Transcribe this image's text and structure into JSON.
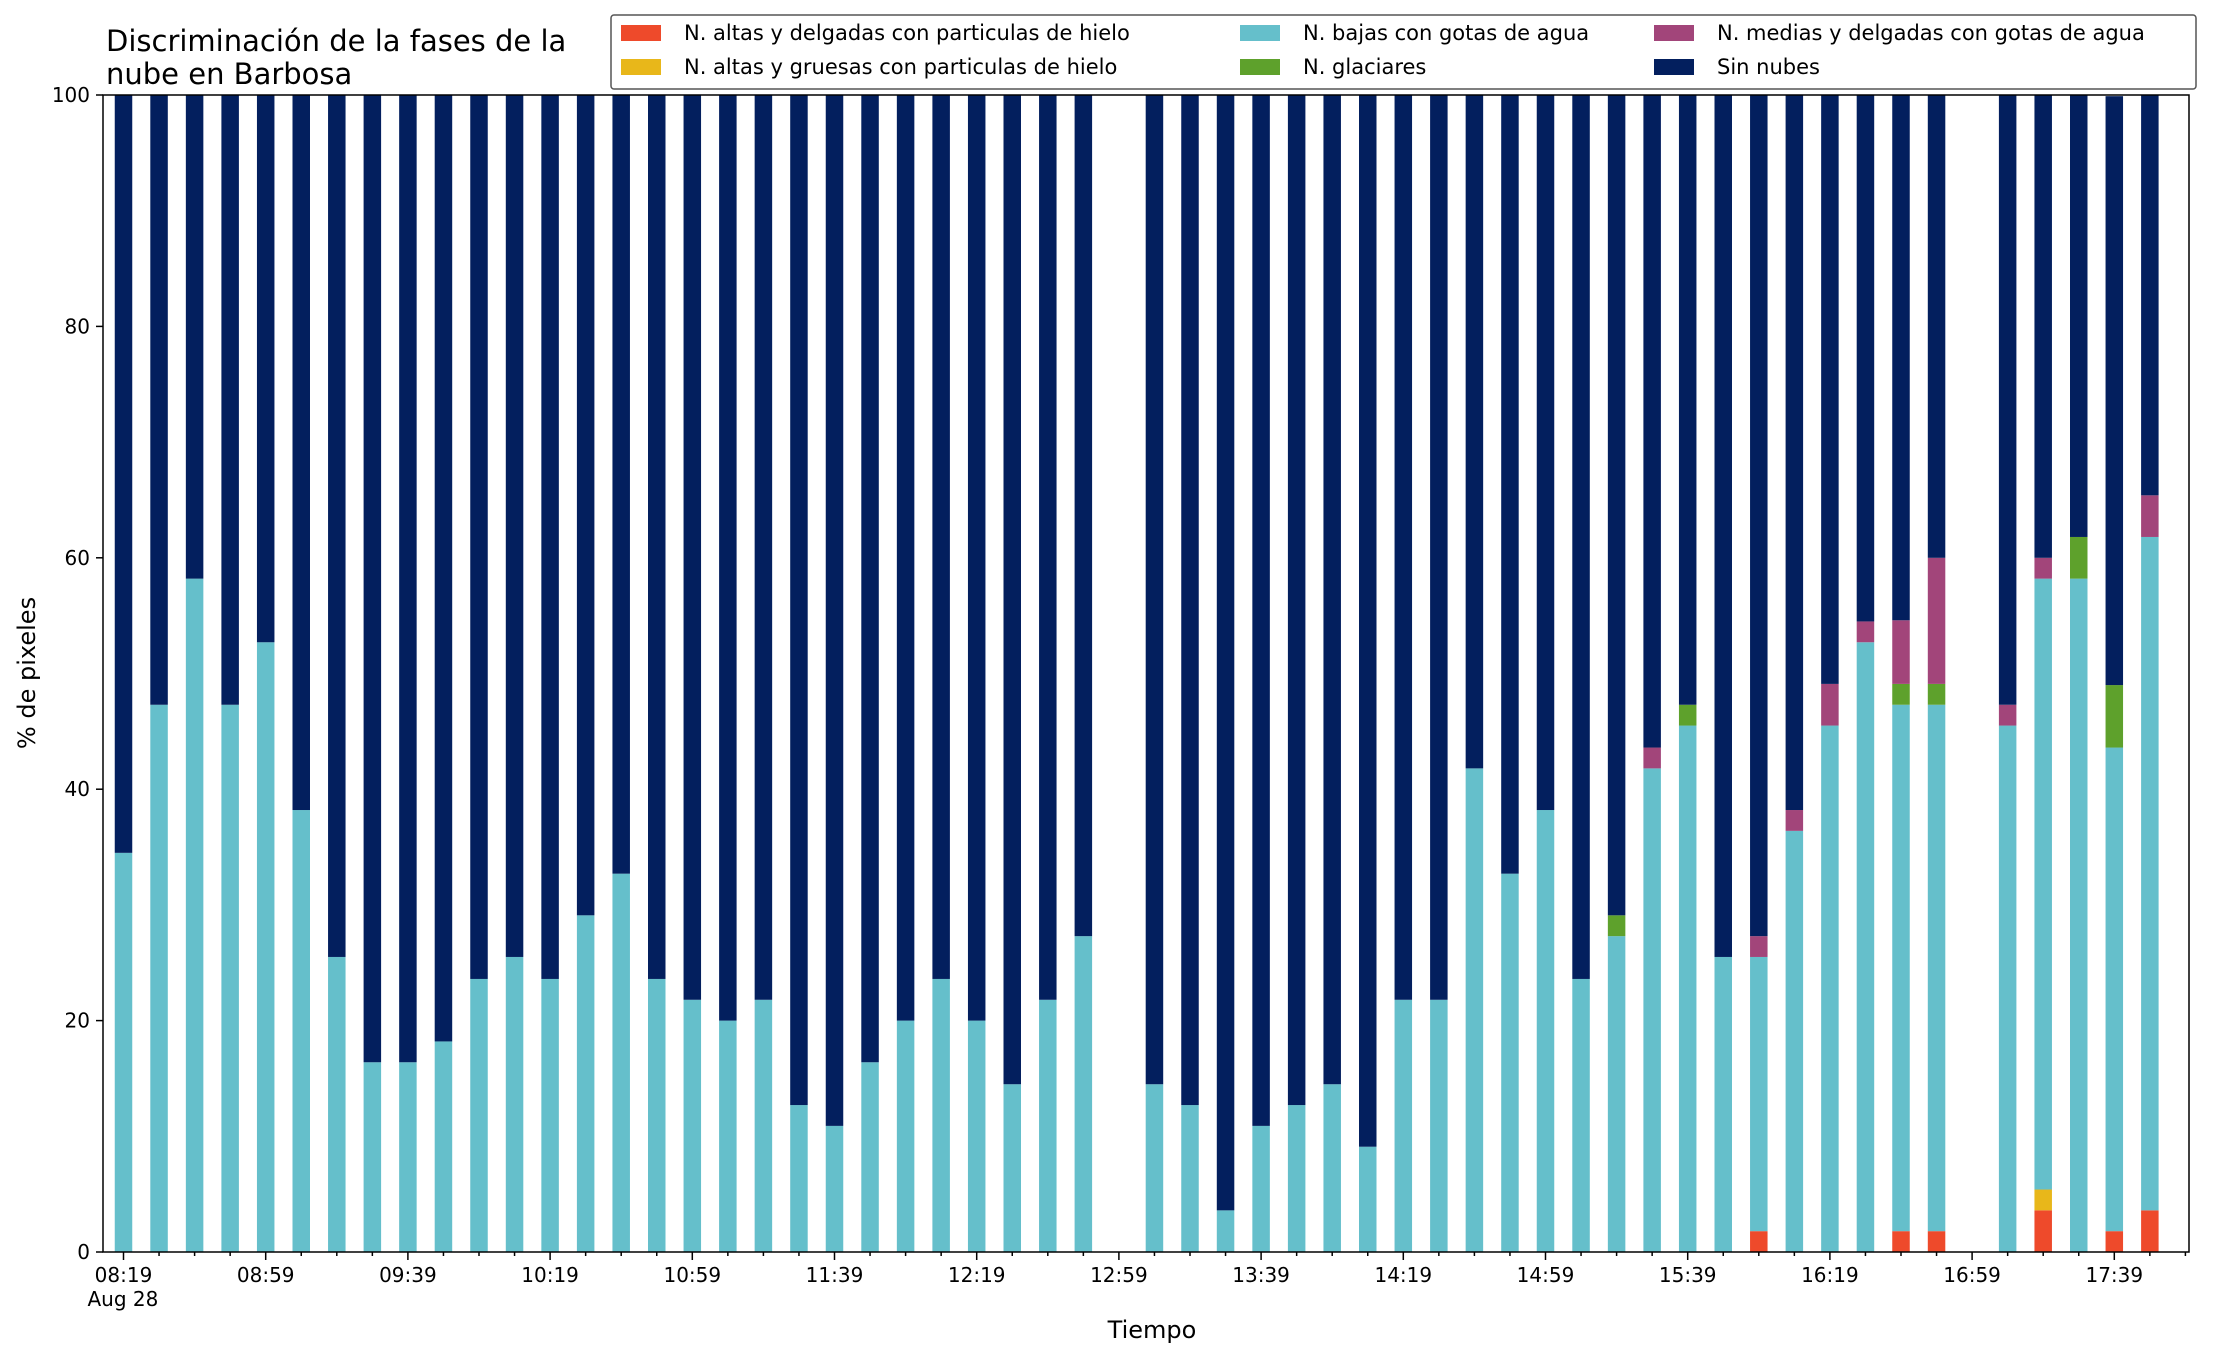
{
  "chart_data": {
    "type": "bar",
    "stacked": true,
    "title_lines": [
      "Discriminación de la fases de la",
      "nube en Barbosa"
    ],
    "xlabel": "Tiempo",
    "ylabel": "% de pixeles",
    "ylim": [
      0,
      100
    ],
    "yticks": [
      0,
      20,
      40,
      60,
      80,
      100
    ],
    "x_ticks": [
      "08:19",
      "08:59",
      "09:39",
      "10:19",
      "10:59",
      "11:39",
      "12:19",
      "12:59",
      "13:39",
      "14:19",
      "14:59",
      "15:39",
      "16:19",
      "16:59",
      "17:39"
    ],
    "x_sublabel": "Aug 28",
    "x_start": "08:19",
    "x_step_minutes": 10,
    "grid": false,
    "legend_position": "top-right",
    "categories": [
      "08:19",
      "08:29",
      "08:39",
      "08:49",
      "08:59",
      "09:09",
      "09:19",
      "09:29",
      "09:39",
      "09:49",
      "09:59",
      "10:09",
      "10:19",
      "10:29",
      "10:39",
      "10:49",
      "10:59",
      "11:09",
      "11:19",
      "11:29",
      "11:39",
      "11:49",
      "11:59",
      "12:09",
      "12:19",
      "12:29",
      "12:39",
      "12:49",
      "12:59",
      "13:09",
      "13:19",
      "13:29",
      "13:39",
      "13:49",
      "13:59",
      "14:09",
      "14:19",
      "14:29",
      "14:39",
      "14:49",
      "14:59",
      "15:09",
      "15:19",
      "15:29",
      "15:39",
      "15:49",
      "15:59",
      "16:09",
      "16:19",
      "16:29",
      "16:39",
      "16:49",
      "16:59",
      "17:09",
      "17:19",
      "17:29",
      "17:39",
      "17:49"
    ],
    "series": [
      {
        "name": "N. altas y delgadas con particulas de hielo",
        "color": "#ee4a2b",
        "values": [
          0,
          0,
          0,
          0,
          0,
          0,
          0,
          0,
          0,
          0,
          0,
          0,
          0,
          0,
          0,
          0,
          0,
          0,
          0,
          0,
          0,
          0,
          0,
          0,
          0,
          0,
          0,
          0,
          null,
          0,
          0,
          0,
          0,
          0,
          0,
          0,
          0,
          0,
          0,
          0,
          0,
          0,
          0,
          0,
          0,
          0,
          1.8,
          0,
          0,
          0,
          1.8,
          1.8,
          null,
          0,
          3.6,
          0,
          1.8,
          3.6
        ]
      },
      {
        "name": "N. altas y gruesas con particulas de hielo",
        "color": "#e8b71a",
        "values": [
          0,
          0,
          0,
          0,
          0,
          0,
          0,
          0,
          0,
          0,
          0,
          0,
          0,
          0,
          0,
          0,
          0,
          0,
          0,
          0,
          0,
          0,
          0,
          0,
          0,
          0,
          0,
          0,
          null,
          0,
          0,
          0,
          0,
          0,
          0,
          0,
          0,
          0,
          0,
          0,
          0,
          0,
          0,
          0,
          0,
          0,
          0,
          0,
          0,
          0,
          0,
          0,
          null,
          0,
          1.8,
          0,
          0,
          0
        ]
      },
      {
        "name": "N. bajas con gotas de agua",
        "color": "#65bfcb",
        "values": [
          34.5,
          47.3,
          58.2,
          47.3,
          52.7,
          38.2,
          25.5,
          16.4,
          16.4,
          18.2,
          23.6,
          25.5,
          23.6,
          29.1,
          32.7,
          23.6,
          21.8,
          20.0,
          21.8,
          12.7,
          10.9,
          16.4,
          20.0,
          23.6,
          20.0,
          14.5,
          21.8,
          27.3,
          null,
          14.5,
          12.7,
          3.6,
          10.9,
          12.7,
          14.5,
          9.1,
          21.8,
          21.8,
          41.8,
          32.7,
          38.2,
          23.6,
          27.3,
          41.8,
          45.5,
          25.5,
          23.7,
          36.4,
          45.5,
          52.7,
          45.5,
          45.5,
          null,
          45.5,
          52.8,
          58.2,
          41.8,
          58.2
        ]
      },
      {
        "name": "N. glaciares",
        "color": "#5ea12c",
        "values": [
          0,
          0,
          0,
          0,
          0,
          0,
          0,
          0,
          0,
          0,
          0,
          0,
          0,
          0,
          0,
          0,
          0,
          0,
          0,
          0,
          0,
          0,
          0,
          0,
          0,
          0,
          0,
          0,
          null,
          0,
          0,
          0,
          0,
          0,
          0,
          0,
          0,
          0,
          0,
          0,
          0,
          0,
          1.8,
          0,
          1.8,
          0,
          0,
          0,
          0,
          0,
          1.8,
          1.8,
          null,
          0,
          0,
          3.6,
          5.4,
          0
        ]
      },
      {
        "name": "N. medias y delgadas con gotas de agua",
        "color": "#a2457a",
        "values": [
          0,
          0,
          0,
          0,
          0,
          0,
          0,
          0,
          0,
          0,
          0,
          0,
          0,
          0,
          0,
          0,
          0,
          0,
          0,
          0,
          0,
          0,
          0,
          0,
          0,
          0,
          0,
          0,
          null,
          0,
          0,
          0,
          0,
          0,
          0,
          0,
          0,
          0,
          0,
          0,
          0,
          0,
          0,
          1.8,
          0,
          0,
          1.8,
          1.8,
          3.6,
          1.8,
          5.5,
          10.9,
          null,
          1.8,
          1.8,
          0,
          0,
          3.6
        ]
      },
      {
        "name": "Sin nubes",
        "color": "#031f5e",
        "values": [
          65.5,
          52.7,
          41.8,
          52.7,
          47.3,
          61.8,
          74.5,
          83.6,
          83.6,
          81.8,
          76.4,
          74.5,
          76.4,
          70.9,
          67.3,
          76.4,
          78.2,
          80.0,
          78.2,
          87.3,
          89.1,
          83.6,
          80.0,
          76.4,
          80.0,
          85.5,
          78.2,
          72.7,
          null,
          85.5,
          87.3,
          96.4,
          89.1,
          87.3,
          85.5,
          90.9,
          78.2,
          78.2,
          58.2,
          67.3,
          61.8,
          76.4,
          70.9,
          56.4,
          52.7,
          74.5,
          72.7,
          61.8,
          50.9,
          45.5,
          45.4,
          40.0,
          null,
          52.7,
          40.0,
          38.2,
          50.9,
          34.6
        ]
      }
    ]
  }
}
